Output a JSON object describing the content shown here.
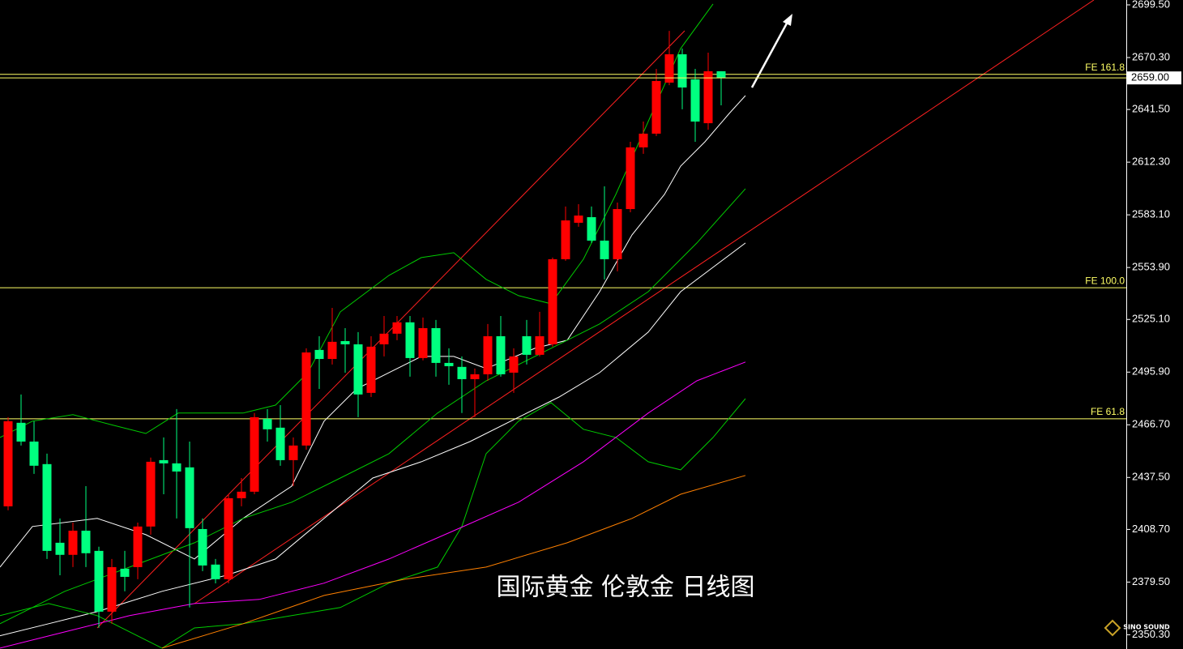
{
  "chart_data": {
    "type": "candlestick",
    "title": "国际黄金 伦敦金 日线图",
    "watermark": "SINO SOUND",
    "xlim": [
      -0.625,
      86.25
    ],
    "ylim": [
      2342.4,
      2702.2
    ],
    "yticks": [
      {
        "value": 2699.5,
        "label": "2699.50"
      },
      {
        "value": 2670.3,
        "label": "2670.30"
      },
      {
        "value": 2641.5,
        "label": "2641.50"
      },
      {
        "value": 2612.3,
        "label": "2612.30"
      },
      {
        "value": 2583.1,
        "label": "2583.10"
      },
      {
        "value": 2553.9,
        "label": "2553.90"
      },
      {
        "value": 2525.1,
        "label": "2525.10"
      },
      {
        "value": 2495.9,
        "label": "2495.90"
      },
      {
        "value": 2466.7,
        "label": "2466.70"
      },
      {
        "value": 2437.5,
        "label": "2437.50"
      },
      {
        "value": 2408.7,
        "label": "2408.70"
      },
      {
        "value": 2379.5,
        "label": "2379.50"
      },
      {
        "value": 2350.3,
        "label": "2350.30"
      }
    ],
    "up_color": "#ff0000",
    "down_color": "#00ff80",
    "open": [
      2421.5,
      2467.8,
      2457.4,
      2444.9,
      2401.3,
      2394.6,
      2408.0,
      2396.8,
      2363.1,
      2386.9,
      2387.8,
      2410.3,
      2447.1,
      2445.3,
      2443.1,
      2408.9,
      2389.2,
      2381.1,
      2426.0,
      2429.6,
      2470.0,
      2465.1,
      2447.1,
      2455.2,
      2508.2,
      2503.2,
      2513.1,
      2511.3,
      2484.4,
      2511.3,
      2517.2,
      2523.5,
      2503.7,
      2520.3,
      2501.0,
      2498.8,
      2492.0,
      2494.7,
      2515.8,
      2495.6,
      2515.8,
      2505.5,
      2511.3,
      2558.5,
      2578.7,
      2581.8,
      2568.8,
      2558.5,
      2586.3,
      2620.5,
      2628.1,
      2656.4,
      2672.1,
      2658.2,
      2633.9,
      2662.7
    ],
    "high": [
      2470.9,
      2483.5,
      2468.7,
      2450.7,
      2414.8,
      2412.5,
      2432.7,
      2399.1,
      2392.3,
      2396.8,
      2412.5,
      2448.5,
      2459.7,
      2475.4,
      2457.4,
      2414.8,
      2392.3,
      2428.2,
      2437.2,
      2473.2,
      2475.4,
      2477.6,
      2459.7,
      2509.1,
      2515.8,
      2531.5,
      2520.3,
      2518.1,
      2515.8,
      2527.0,
      2527.0,
      2527.0,
      2526.2,
      2524.8,
      2509.1,
      2504.6,
      2497.9,
      2522.6,
      2527.0,
      2509.1,
      2524.8,
      2529.3,
      2559.4,
      2587.7,
      2589.0,
      2587.7,
      2598.9,
      2589.9,
      2623.6,
      2634.8,
      2664.0,
      2685.1,
      2675.3,
      2664.0,
      2673.0,
      2662.7
    ],
    "low": [
      2419.3,
      2455.2,
      2439.5,
      2392.3,
      2383.3,
      2387.8,
      2387.8,
      2354.2,
      2356.4,
      2374.4,
      2381.1,
      2405.8,
      2428.2,
      2414.8,
      2365.4,
      2385.6,
      2378.8,
      2378.8,
      2421.5,
      2428.2,
      2457.4,
      2444.0,
      2432.7,
      2452.9,
      2486.6,
      2500.1,
      2495.6,
      2470.9,
      2482.1,
      2504.6,
      2513.6,
      2493.4,
      2502.4,
      2493.4,
      2488.9,
      2473.2,
      2470.9,
      2491.1,
      2493.4,
      2484.4,
      2500.1,
      2504.6,
      2510.0,
      2557.6,
      2576.5,
      2567.5,
      2547.3,
      2551.8,
      2584.5,
      2616.9,
      2626.8,
      2655.0,
      2641.6,
      2623.6,
      2630.3,
      2643.8
    ],
    "close": [
      2468.7,
      2457.4,
      2444.0,
      2396.8,
      2394.6,
      2408.0,
      2395.5,
      2363.1,
      2387.8,
      2382.4,
      2410.3,
      2446.2,
      2445.3,
      2440.8,
      2409.4,
      2388.7,
      2381.1,
      2426.0,
      2429.6,
      2470.9,
      2464.2,
      2447.1,
      2455.2,
      2506.8,
      2503.2,
      2512.7,
      2511.3,
      2483.5,
      2510.0,
      2517.2,
      2523.5,
      2503.7,
      2520.3,
      2501.0,
      2499.2,
      2492.0,
      2494.7,
      2515.8,
      2494.7,
      2504.6,
      2505.5,
      2515.8,
      2558.5,
      2580.0,
      2582.7,
      2568.8,
      2558.5,
      2586.3,
      2620.5,
      2628.1,
      2657.3,
      2672.1,
      2653.7,
      2634.8,
      2662.7,
      2659.0
    ],
    "lines": [
      {
        "color": "#ffffff",
        "x": [
          -0.625,
          1.875,
          6.875,
          10.625,
          14.375,
          18.125,
          21.875,
          24.375,
          26.875,
          29.375,
          31.875,
          34.375,
          36.875,
          40.625,
          43.125,
          45.625,
          48.125,
          50.625,
          51.875,
          53.75,
          55.625,
          56.875
        ],
        "values": [
          2387.8,
          2410.3,
          2414.8,
          2405.8,
          2392.3,
          2414.8,
          2432.7,
          2468.7,
          2486.6,
          2495.6,
          2504.6,
          2504.6,
          2497.9,
          2509.1,
          2513.6,
          2540.5,
          2572.0,
          2594.4,
          2610.1,
          2623.6,
          2639.3,
          2649.2
        ]
      },
      {
        "color": "#ffffff",
        "x": [
          -0.625,
          3.125,
          6.875,
          11.875,
          16.875,
          20.625,
          24.375,
          28.125,
          31.875,
          35.625,
          39.375,
          42.5,
          45.625,
          49.375,
          51.875,
          54.375,
          56.875
        ],
        "values": [
          2349.7,
          2356.4,
          2363.1,
          2374.4,
          2383.3,
          2392.3,
          2414.8,
          2437.2,
          2446.2,
          2457.4,
          2470.9,
          2482.1,
          2495.6,
          2518.1,
          2540.5,
          2554.0,
          2567.5
        ]
      },
      {
        "color": "#00cc00",
        "x": [
          -0.625,
          4.375,
          9.375,
          14.375,
          18.125,
          21.875,
          25.625,
          29.375,
          33.125,
          36.875,
          41.875,
          45.625,
          49.375,
          53.125,
          56.875
        ],
        "values": [
          2356.4,
          2374.4,
          2387.8,
          2401.3,
          2414.8,
          2423.8,
          2437.2,
          2450.7,
          2473.2,
          2491.1,
          2509.1,
          2522.6,
          2540.5,
          2567.5,
          2597.6
        ]
      },
      {
        "color": "#00cc00",
        "x": [
          -0.625,
          1.875,
          5,
          8.125,
          10.625,
          13.125,
          18.125,
          20.625,
          23.125,
          25.625,
          29.375,
          31.875,
          34.375,
          36.875,
          39.375,
          41.875,
          44.375,
          46.875,
          49.375,
          51.875,
          54.375
        ],
        "values": [
          2459.7,
          2468.7,
          2472.3,
          2466.4,
          2461.9,
          2473.2,
          2473.2,
          2477.6,
          2495.6,
          2529.3,
          2549.5,
          2559.4,
          2562.1,
          2547.3,
          2538.3,
          2533.8,
          2558.5,
          2594.4,
          2634.8,
          2675.3,
          2700.0
        ]
      },
      {
        "color": "#00cc00",
        "x": [
          -0.625,
          3.125,
          6.875,
          11.875,
          14.375,
          18.125,
          21.875,
          25.625,
          29.375,
          33.125,
          35,
          36.875,
          39.375,
          41.875,
          44.375,
          46.875,
          49.375,
          51.875,
          54.375,
          56.875
        ],
        "values": [
          2360.9,
          2367.6,
          2360.9,
          2342.9,
          2354.1,
          2356.4,
          2360.9,
          2365.4,
          2378.9,
          2387.8,
          2410.3,
          2450.7,
          2468.7,
          2479.0,
          2464.2,
          2459.7,
          2446.2,
          2441.7,
          2459.7,
          2481.2
        ]
      },
      {
        "color": "#ff00ff",
        "x": [
          -0.625,
          4.375,
          9.375,
          14.375,
          19.375,
          24.375,
          29.375,
          34.375,
          39.375,
          44.375,
          49.375,
          53.125,
          56.875
        ],
        "values": [
          2342.9,
          2351.9,
          2360.9,
          2367.6,
          2369.9,
          2378.9,
          2392.3,
          2408.0,
          2423.8,
          2446.2,
          2473.2,
          2491.1,
          2501.5
        ]
      },
      {
        "color": "#ff8000",
        "x": [
          11.875,
          18.125,
          24.375,
          30.625,
          36.875,
          43.125,
          48.125,
          51.875,
          56.875
        ],
        "values": [
          2342.9,
          2356.4,
          2372.1,
          2381.1,
          2387.8,
          2401.3,
          2414.8,
          2428.2,
          2438.6
        ]
      }
    ],
    "levels": [
      {
        "label": "FE 161.8",
        "value": 2661.0
      },
      {
        "label": "FE 100.0",
        "value": 2542.7
      },
      {
        "label": "FE 61.8",
        "value": 2470.0
      }
    ],
    "last_price": {
      "value": 2659.0,
      "label": "2659.00"
    }
  }
}
